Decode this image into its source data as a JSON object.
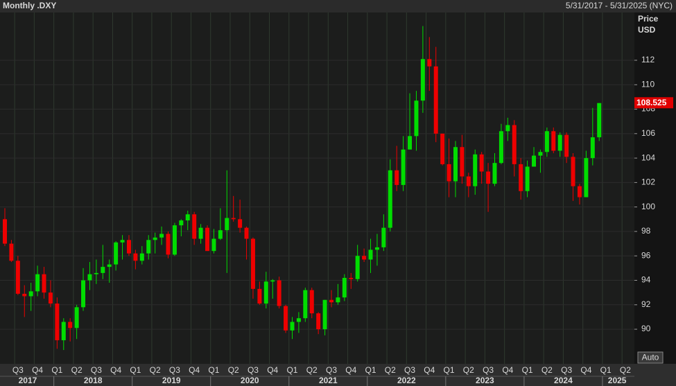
{
  "chart_data": {
    "type": "candlestick",
    "title": "Monthly .DXY",
    "date_range": "5/31/2017 - 5/31/2025 (NYC)",
    "y_axis_label": [
      "Price",
      "USD"
    ],
    "button": "Auto",
    "last_price": 108.525,
    "up_color": "#00dd00",
    "down_color": "#ee0000",
    "grid": true,
    "ylim": [
      87.17,
      115.91
    ],
    "yticks": [
      90,
      92,
      94,
      96,
      98,
      100,
      102,
      104,
      106,
      108,
      110,
      112
    ],
    "quarters": [
      "Q3",
      "Q4",
      "Q1",
      "Q2",
      "Q3",
      "Q4",
      "Q1",
      "Q2",
      "Q3",
      "Q4",
      "Q1",
      "Q2",
      "Q3",
      "Q4",
      "Q1",
      "Q2",
      "Q3",
      "Q4",
      "Q1",
      "Q2",
      "Q3",
      "Q4",
      "Q1",
      "Q2",
      "Q3",
      "Q4",
      "Q1",
      "Q2",
      "Q3",
      "Q4",
      "Q1",
      "Q2"
    ],
    "years": [
      "2017",
      "2018",
      "2019",
      "2020",
      "2021",
      "2022",
      "2023",
      "2024",
      "2025"
    ],
    "open": [
      99.0,
      97.0,
      95.6,
      92.9,
      92.7,
      93.1,
      94.5,
      93.0,
      92.1,
      89.1,
      90.6,
      90.1,
      91.8,
      94.0,
      94.5,
      94.6,
      95.1,
      95.3,
      97.1,
      97.3,
      96.2,
      95.6,
      96.2,
      97.3,
      97.5,
      97.8,
      96.1,
      98.5,
      98.9,
      99.4,
      97.4,
      98.3,
      96.4,
      97.4,
      98.1,
      99.1,
      99.0,
      98.3,
      97.4,
      93.3,
      92.1,
      93.9,
      94.0,
      91.9,
      89.9,
      90.6,
      90.9,
      93.2,
      91.3,
      90.0,
      92.4,
      92.2,
      92.6,
      94.2,
      94.1,
      96.0,
      95.7,
      96.5,
      96.7,
      98.3,
      103.0,
      101.8,
      104.7,
      105.8,
      108.7,
      112.1,
      111.5,
      106.0,
      103.5,
      102.1,
      104.9,
      102.5,
      101.7,
      104.3,
      102.9,
      101.9,
      103.6,
      106.2,
      106.7,
      103.5,
      101.3,
      103.3,
      104.2,
      104.5,
      106.2,
      104.6,
      105.9,
      104.1,
      101.7,
      100.8,
      104.0,
      105.7
    ],
    "high": [
      99.9,
      97.3,
      96.0,
      93.6,
      93.8,
      95.2,
      95.1,
      94.0,
      92.6,
      90.9,
      90.9,
      92.0,
      95.0,
      95.5,
      95.7,
      96.9,
      95.7,
      97.2,
      97.7,
      97.7,
      96.5,
      96.8,
      97.7,
      97.9,
      98.4,
      98.0,
      98.7,
      99.0,
      99.7,
      99.6,
      98.6,
      98.5,
      98.2,
      99.9,
      103.0,
      100.9,
      100.6,
      98.4,
      97.5,
      93.9,
      94.7,
      94.1,
      94.3,
      92.0,
      91.0,
      91.4,
      93.4,
      93.4,
      91.4,
      92.4,
      93.2,
      93.7,
      94.5,
      94.6,
      96.9,
      96.6,
      97.4,
      97.8,
      99.4,
      103.9,
      105.0,
      105.8,
      109.3,
      109.5,
      114.8,
      113.9,
      113.1,
      106.0,
      105.6,
      105.4,
      105.9,
      102.8,
      104.7,
      104.5,
      103.6,
      104.4,
      106.8,
      107.3,
      107.1,
      104.0,
      103.8,
      104.9,
      104.7,
      106.5,
      106.5,
      106.1,
      106.1,
      104.4,
      101.9,
      104.6,
      108.1,
      108.5
    ],
    "low": [
      96.8,
      95.5,
      92.8,
      91.0,
      91.5,
      92.7,
      92.5,
      91.8,
      88.4,
      88.3,
      89.0,
      89.2,
      91.5,
      93.2,
      93.7,
      94.1,
      93.8,
      94.8,
      95.7,
      96.0,
      94.9,
      95.3,
      95.7,
      96.2,
      96.9,
      95.8,
      96.0,
      97.6,
      98.1,
      96.9,
      97.0,
      96.4,
      96.2,
      97.3,
      94.6,
      98.8,
      97.9,
      95.7,
      92.5,
      92.0,
      91.7,
      92.5,
      91.7,
      89.7,
      89.2,
      89.7,
      90.6,
      90.9,
      89.6,
      89.5,
      91.8,
      92.0,
      92.3,
      93.3,
      93.9,
      95.5,
      94.6,
      95.2,
      96.4,
      98.0,
      101.3,
      101.3,
      104.7,
      104.6,
      107.7,
      109.5,
      105.3,
      103.4,
      100.8,
      100.8,
      101.9,
      100.8,
      101.0,
      101.9,
      99.6,
      101.7,
      103.5,
      105.4,
      102.5,
      100.6,
      100.8,
      103.3,
      102.8,
      104.1,
      104.4,
      104.1,
      103.6,
      100.5,
      100.2,
      100.8,
      103.4,
      105.4
    ],
    "close": [
      97.0,
      95.6,
      92.9,
      92.7,
      93.1,
      94.5,
      93.0,
      92.1,
      89.1,
      90.6,
      90.1,
      91.8,
      94.0,
      94.5,
      94.6,
      95.1,
      95.3,
      97.1,
      97.3,
      96.2,
      95.6,
      96.2,
      97.3,
      97.5,
      97.8,
      96.1,
      98.5,
      98.9,
      99.4,
      97.4,
      98.3,
      96.4,
      97.4,
      98.1,
      99.1,
      99.0,
      98.3,
      97.4,
      93.3,
      92.1,
      93.9,
      94.0,
      91.9,
      89.9,
      90.6,
      90.9,
      93.2,
      91.3,
      90.0,
      92.4,
      92.2,
      92.6,
      94.2,
      94.1,
      96.0,
      95.7,
      96.5,
      96.7,
      98.3,
      103.0,
      101.8,
      104.7,
      105.8,
      108.7,
      112.1,
      111.5,
      106.0,
      103.5,
      102.1,
      104.9,
      102.5,
      101.7,
      104.3,
      102.9,
      101.9,
      103.6,
      106.2,
      106.7,
      103.5,
      101.3,
      103.3,
      104.2,
      104.5,
      106.2,
      104.6,
      105.9,
      104.1,
      101.7,
      100.8,
      104.0,
      105.7,
      108.5
    ]
  }
}
